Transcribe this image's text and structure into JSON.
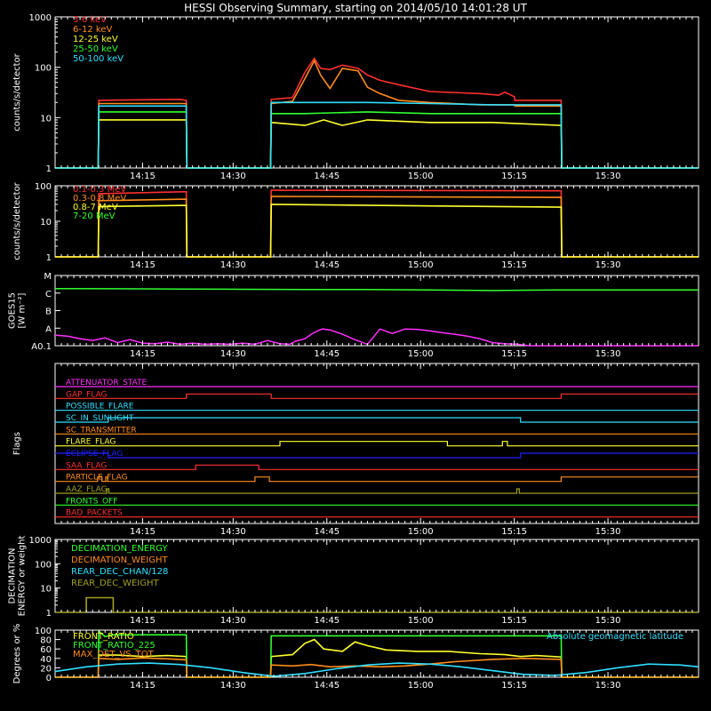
{
  "title": "HESSI Observing Summary, starting on 2014/05/10 14:01:28 UT",
  "colors": {
    "red": "#ff3030",
    "orange": "#ff8c1a",
    "yellow": "#ffff30",
    "green": "#30ff30",
    "cyan": "#30e0ff",
    "magenta": "#ff30ff",
    "blue": "#2020ff",
    "olive": "#a0a020",
    "white": "#ffffff"
  },
  "time_axis": {
    "ticks": [
      "14:15",
      "14:30",
      "14:45",
      "15:00",
      "15:15",
      "15:30"
    ],
    "tick_minutes": [
      14.0,
      28.5,
      43.5,
      58.5,
      73.5,
      88.5
    ],
    "range_minutes": [
      0.0,
      103.0
    ],
    "minor_step_minutes": 1.0
  },
  "chart_data": [
    {
      "type": "line",
      "name": "panel-xray-low",
      "ylabel": "counts/s/detector",
      "yscale": "log",
      "ylim": [
        1,
        1000
      ],
      "yticks": [
        "1",
        "10",
        "100",
        "1000"
      ],
      "series": [
        {
          "name": "3-6 keV",
          "color": "#ff3030",
          "x": [
            0,
            6.9,
            7.0,
            20,
            21.0,
            21.1,
            34.5,
            34.6,
            38,
            40,
            41.5,
            42.5,
            44,
            46,
            48.5,
            50,
            52,
            55,
            60,
            68,
            71,
            72,
            73.5,
            73.6,
            81.0,
            81.1,
            103
          ],
          "y": [
            1,
            1,
            22,
            23,
            22,
            1,
            1,
            23,
            25,
            80,
            150,
            95,
            90,
            110,
            95,
            70,
            55,
            45,
            33,
            30,
            28,
            32,
            26,
            22,
            22,
            1,
            1
          ]
        },
        {
          "name": "6-12 keV",
          "color": "#ff8c1a",
          "x": [
            0,
            6.9,
            7.0,
            21.0,
            21.1,
            34.5,
            34.6,
            38,
            40,
            41.5,
            42.5,
            44,
            46,
            48.5,
            50,
            52,
            55,
            60,
            68,
            73.5,
            73.6,
            81.0,
            81.1,
            103
          ],
          "y": [
            1,
            1,
            19,
            19,
            1,
            1,
            19,
            21,
            60,
            135,
            70,
            38,
            95,
            85,
            40,
            30,
            22,
            20,
            18,
            18,
            17,
            17,
            1,
            1
          ]
        },
        {
          "name": "12-25 keV",
          "color": "#ffff30",
          "x": [
            0,
            6.9,
            7.0,
            21.0,
            21.1,
            34.5,
            34.6,
            40,
            43,
            46,
            50,
            60,
            70,
            81.0,
            81.1,
            103
          ],
          "y": [
            1,
            1,
            9,
            9,
            1,
            1,
            8,
            7,
            9,
            7,
            9,
            8,
            8,
            7,
            1,
            1
          ]
        },
        {
          "name": "25-50 keV",
          "color": "#30ff30",
          "x": [
            0,
            6.9,
            7.0,
            21.0,
            21.1,
            34.5,
            34.6,
            40,
            50,
            60,
            70,
            81.0,
            81.1,
            103
          ],
          "y": [
            1,
            1,
            13,
            13,
            1,
            1,
            12,
            12,
            13,
            12,
            12,
            12,
            1,
            1
          ]
        },
        {
          "name": "50-100 keV",
          "color": "#30e0ff",
          "x": [
            0,
            6.9,
            7.0,
            21.0,
            21.1,
            34.5,
            34.6,
            50,
            60,
            70,
            81.0,
            81.1,
            103
          ],
          "y": [
            1,
            1,
            17,
            17,
            1,
            1,
            20,
            20,
            19,
            18,
            18,
            1,
            1
          ]
        }
      ]
    },
    {
      "type": "line",
      "name": "panel-xray-high",
      "ylabel": "counts/s/detector",
      "yscale": "log",
      "ylim": [
        1,
        100
      ],
      "yticks": [
        "1",
        "10",
        "100"
      ],
      "series": [
        {
          "name": "0.1-0.3 MeV",
          "color": "#ff3030",
          "x": [
            0,
            6.9,
            7.0,
            21.0,
            21.1,
            34.5,
            34.6,
            81.0,
            81.1,
            103
          ],
          "y": [
            1,
            1,
            60,
            68,
            1,
            1,
            75,
            72,
            1,
            1
          ]
        },
        {
          "name": "0.3-0.8 MeV",
          "color": "#ff8c1a",
          "x": [
            0,
            6.9,
            7.0,
            21.0,
            21.1,
            34.5,
            34.6,
            81.0,
            81.1,
            103
          ],
          "y": [
            1,
            1,
            38,
            42,
            1,
            1,
            50,
            47,
            1,
            1
          ]
        },
        {
          "name": "0.8-7 MeV",
          "color": "#ffff30",
          "x": [
            0,
            6.9,
            7.0,
            21.0,
            21.1,
            34.5,
            34.6,
            81.0,
            81.1,
            103
          ],
          "y": [
            1,
            1,
            26,
            28,
            1,
            1,
            30,
            25,
            1,
            1
          ]
        },
        {
          "name": "7-20 MeV",
          "color": "#30ff30",
          "x": [],
          "y": []
        }
      ]
    },
    {
      "type": "line",
      "name": "panel-goes",
      "ylabel": "GOES15 [W m⁻²]",
      "yscale": "log",
      "ylim": [
        0.1,
        1000
      ],
      "yticks": [
        "A0.1",
        "A",
        "B",
        "C",
        "M"
      ],
      "series": [
        {
          "name": "GOES long",
          "color": "#30ff30",
          "x": [
            0,
            10,
            20,
            30,
            40,
            50,
            60,
            70,
            80,
            90,
            103
          ],
          "y": [
            180,
            175,
            170,
            165,
            160,
            160,
            150,
            140,
            150,
            150,
            150
          ]
        },
        {
          "name": "GOES short",
          "color": "#ff30ff",
          "x": [
            0,
            2,
            4,
            6,
            8,
            10,
            12,
            14,
            16,
            18,
            20,
            22,
            24,
            26,
            28,
            30,
            32,
            34,
            36,
            37.5,
            38.5,
            40,
            41,
            42,
            42.8,
            44,
            46,
            48,
            50,
            52,
            54,
            56,
            58,
            60,
            62,
            64,
            66,
            68,
            70,
            72,
            74,
            76,
            78,
            103
          ],
          "y": [
            0.4,
            0.35,
            0.25,
            0.2,
            0.28,
            0.15,
            0.22,
            0.14,
            0.13,
            0.16,
            0.12,
            0.14,
            0.12,
            0.13,
            0.12,
            0.14,
            0.12,
            0.2,
            0.13,
            0.12,
            0.18,
            0.25,
            0.45,
            0.7,
            0.9,
            0.8,
            0.45,
            0.22,
            0.12,
            0.9,
            0.5,
            0.9,
            0.85,
            0.7,
            0.55,
            0.45,
            0.35,
            0.25,
            0.15,
            0.13,
            0.12,
            0.1,
            0.1,
            0.1
          ]
        }
      ]
    },
    {
      "type": "line",
      "name": "panel-flags",
      "ylabel": "Flags",
      "series": [
        {
          "name": "ATTENUATOR_STATE",
          "color": "#ff30ff",
          "x": [
            0,
            103
          ],
          "y": [
            0,
            0
          ]
        },
        {
          "name": "GAP_FLAG",
          "color": "#ff3030",
          "x": [
            0,
            21.0,
            21.0,
            34.6,
            34.6,
            81.0,
            81.0,
            103
          ],
          "y": [
            0,
            0,
            1,
            1,
            0,
            0,
            1,
            1
          ]
        },
        {
          "name": "POSSIBLE_FLARE",
          "color": "#30e0ff",
          "x": [
            0,
            103
          ],
          "y": [
            0,
            0
          ]
        },
        {
          "name": "SC_IN_SUNLIGHT",
          "color": "#30e0ff",
          "x": [
            0,
            8.5,
            8.5,
            74.5,
            74.5,
            103
          ],
          "y": [
            0,
            0,
            1,
            1,
            0,
            0
          ]
        },
        {
          "name": "SC_TRANSMITTER",
          "color": "#ff8c1a",
          "x": [
            0,
            103
          ],
          "y": [
            0,
            0
          ]
        },
        {
          "name": "FLARE_FLAG",
          "color": "#ffff30",
          "x": [
            0,
            36.0,
            36.0,
            62.8,
            62.8,
            71.6,
            71.6,
            72.4,
            72.4,
            103
          ],
          "y": [
            0,
            0,
            1,
            1,
            0,
            0,
            1,
            1,
            0,
            0
          ]
        },
        {
          "name": "ECLIPSE_FLAG",
          "color": "#2020ff",
          "x": [
            0,
            8.5,
            8.5,
            74.5,
            74.5,
            103
          ],
          "y": [
            1,
            1,
            0,
            0,
            1,
            1
          ]
        },
        {
          "name": "SAA_FLAG",
          "color": "#ff3030",
          "x": [
            0,
            22.5,
            22.5,
            32.6,
            32.6,
            103
          ],
          "y": [
            0,
            0,
            1,
            1,
            0,
            0
          ]
        },
        {
          "name": "PARTICLE_FLAG",
          "color": "#ff8c1a",
          "x": [
            0,
            6.8,
            6.8,
            7.5,
            7.5,
            8.1,
            8.1,
            8.4,
            8.4,
            32.0,
            32.0,
            34.3,
            34.3,
            81.0,
            81.0,
            103
          ],
          "y": [
            0,
            0,
            1,
            1,
            0,
            0,
            1,
            1,
            0,
            0,
            1,
            1,
            0,
            0,
            1,
            1
          ]
        },
        {
          "name": "AAZ_FLAG",
          "color": "#a0a020",
          "x": [
            0,
            8.3,
            8.3,
            8.6,
            8.6,
            73.9,
            73.9,
            74.3,
            74.3,
            103
          ],
          "y": [
            0,
            0,
            1,
            1,
            0,
            0,
            1,
            1,
            0,
            0
          ]
        },
        {
          "name": "FRONTS_OFF",
          "color": "#30ff30",
          "x": [
            0,
            103
          ],
          "y": [
            0,
            0
          ]
        },
        {
          "name": "BAD_PACKETS",
          "color": "#ff3030",
          "x": [
            0,
            103
          ],
          "y": [
            0,
            0
          ]
        }
      ]
    },
    {
      "type": "line",
      "name": "panel-decimation",
      "ylabel": "DECIMATION\nENERGY or weight",
      "yscale": "log",
      "ylim": [
        1,
        1000
      ],
      "yticks": [
        "1",
        "10",
        "100",
        "1000"
      ],
      "series": [
        {
          "name": "DECIMATION_ENERGY",
          "color": "#30ff30",
          "x": [],
          "y": []
        },
        {
          "name": "DECIMATION_WEIGHT",
          "color": "#ff8c1a",
          "x": [],
          "y": []
        },
        {
          "name": "REAR_DEC_CHAN/128",
          "color": "#30e0ff",
          "x": [],
          "y": []
        },
        {
          "name": "REAR_DEC_WEIGHT",
          "color": "#a0a020",
          "x": [
            0,
            5.0,
            5.0,
            9.3,
            9.3,
            103
          ],
          "y": [
            1,
            1,
            4,
            4,
            1,
            1
          ]
        }
      ]
    },
    {
      "type": "line",
      "name": "panel-ratio",
      "ylabel": "Degrees or %",
      "ylim": [
        0,
        100
      ],
      "yticks": [
        "0",
        "20",
        "40",
        "60",
        "80",
        "100"
      ],
      "annotation": "Absolute geomagnetic latitude",
      "series": [
        {
          "name": "FRONT_RATIO",
          "color": "#ffff30",
          "x": [
            0,
            6.9,
            7.0,
            10,
            14,
            18,
            21.0,
            21.1,
            34.5,
            34.6,
            38,
            40,
            41.5,
            43,
            46,
            48,
            50,
            53,
            58,
            63,
            68,
            72,
            74.5,
            77,
            81.0,
            81.1,
            103
          ],
          "y": [
            0,
            0,
            47,
            47,
            44,
            46,
            44,
            0,
            0,
            44,
            48,
            72,
            80,
            60,
            55,
            75,
            67,
            58,
            55,
            55,
            50,
            48,
            44,
            46,
            43,
            0,
            0
          ]
        },
        {
          "name": "FRONT_RATIO_225",
          "color": "#30ff30",
          "x": [
            0,
            6.9,
            7.0,
            8.0,
            9.0,
            21.0,
            21.1,
            34.5,
            34.6,
            81.0,
            81.1,
            103
          ],
          "y": [
            0,
            0,
            98,
            86,
            90,
            90,
            0,
            0,
            88,
            88,
            0,
            0
          ]
        },
        {
          "name": "MAX_DET_VS_TOT",
          "color": "#ff8c1a",
          "x": [
            0,
            6.9,
            7.0,
            10,
            14,
            18,
            21.0,
            21.1,
            34.5,
            34.6,
            38,
            41,
            44,
            48,
            52,
            56,
            60,
            64,
            70,
            75,
            81.0,
            81.1,
            103
          ],
          "y": [
            0,
            0,
            40,
            38,
            41,
            39,
            37,
            0,
            0,
            26,
            24,
            27,
            22,
            24,
            22,
            24,
            28,
            33,
            38,
            40,
            38,
            0,
            0
          ]
        },
        {
          "name": "Absolute geomagnetic latitude",
          "color": "#30e0ff",
          "x": [
            0,
            5,
            10,
            15,
            20,
            25,
            30,
            35,
            40,
            45,
            50,
            55,
            60,
            65,
            70,
            75,
            80,
            85,
            90,
            95,
            100,
            103
          ],
          "y": [
            12,
            22,
            28,
            30,
            27,
            20,
            10,
            2,
            8,
            18,
            26,
            30,
            28,
            22,
            14,
            6,
            4,
            10,
            20,
            28,
            26,
            22
          ]
        }
      ]
    }
  ]
}
